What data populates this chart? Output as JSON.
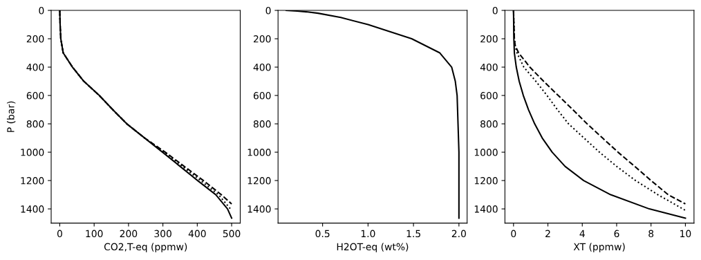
{
  "chart_data": [
    {
      "type": "line",
      "xlabel": "CO2,T-eq (ppmw)",
      "ylabel": "P (bar)",
      "xlim": [
        -25,
        525
      ],
      "xticks": [
        0,
        100,
        200,
        300,
        400,
        500
      ],
      "ylim": [
        1500,
        0
      ],
      "yticks": [
        0,
        200,
        400,
        600,
        800,
        1000,
        1200,
        1400
      ],
      "grid": false,
      "marker": "none",
      "series": [
        {
          "color": "#000000",
          "line_style": "solid",
          "x": [
            0,
            1,
            3,
            10,
            37,
            70,
            115,
            154,
            195,
            247,
            299,
            350,
            401,
            454,
            488,
            500
          ],
          "values": [
            0,
            100,
            200,
            300,
            400,
            500,
            600,
            700,
            800,
            900,
            1000,
            1100,
            1200,
            1300,
            1400,
            1465
          ]
        },
        {
          "color": "#000000",
          "line_style": "dashed",
          "x": [
            0,
            1,
            3,
            10,
            37,
            70,
            115,
            154,
            195,
            247,
            307,
            362,
            418,
            470,
            500
          ],
          "values": [
            0,
            100,
            200,
            300,
            400,
            500,
            600,
            700,
            800,
            900,
            1000,
            1100,
            1200,
            1300,
            1365
          ]
        },
        {
          "color": "#000000",
          "line_style": "dotted",
          "x": [
            0,
            1,
            3,
            10,
            37,
            70,
            115,
            154,
            195,
            247,
            304,
            357,
            410,
            462,
            500
          ],
          "values": [
            0,
            100,
            200,
            300,
            400,
            500,
            600,
            700,
            800,
            900,
            1000,
            1100,
            1200,
            1300,
            1410
          ]
        }
      ]
    },
    {
      "type": "line",
      "xlabel": "H2OT-eq (wt%)",
      "xlim": [
        0.01,
        2.09
      ],
      "xticks": [
        {
          "value": 0.5,
          "label": "0.5"
        },
        {
          "value": 1,
          "label": "1.0"
        },
        {
          "value": 1.5,
          "label": "1.5"
        },
        {
          "value": 2,
          "label": "2.0"
        }
      ],
      "ylim": [
        1500,
        0
      ],
      "yticks": [
        0,
        200,
        400,
        600,
        800,
        1000,
        1200,
        1400
      ],
      "grid": false,
      "marker": "none",
      "series": [
        {
          "color": "#000000",
          "line_style": "solid",
          "x": [
            0.1,
            0.22,
            0.32,
            0.45,
            0.7,
            1.0,
            1.24,
            1.48,
            1.79,
            1.92,
            1.96,
            1.98,
            1.99,
            2.0,
            2.0,
            2.0
          ],
          "values": [
            0,
            5,
            10,
            20,
            50,
            100,
            150,
            200,
            300,
            400,
            500,
            600,
            800,
            1000,
            1200,
            1465
          ]
        }
      ]
    },
    {
      "type": "line",
      "xlabel": "XT (ppmw)",
      "xlim": [
        -0.5,
        10.5
      ],
      "xticks": [
        0,
        2,
        4,
        6,
        8,
        10
      ],
      "ylim": [
        1500,
        0
      ],
      "yticks": [
        0,
        200,
        400,
        600,
        800,
        1000,
        1200,
        1400
      ],
      "grid": false,
      "marker": "none",
      "series": [
        {
          "color": "#000000",
          "line_style": "solid",
          "x": [
            0,
            0.02,
            0.05,
            0.16,
            0.33,
            0.57,
            0.87,
            1.23,
            1.67,
            2.25,
            3.0,
            4.08,
            5.65,
            7.9,
            10
          ],
          "values": [
            0,
            200,
            300,
            400,
            500,
            600,
            700,
            800,
            900,
            1000,
            1100,
            1200,
            1300,
            1400,
            1465
          ]
        },
        {
          "color": "#000000",
          "line_style": "dashed",
          "x": [
            0,
            0.05,
            0.1,
            0.3,
            0.95,
            1.75,
            2.6,
            3.45,
            4.28,
            5.18,
            6.08,
            7.05,
            8.0,
            9.0,
            10
          ],
          "values": [
            0,
            200,
            250,
            300,
            400,
            500,
            600,
            700,
            800,
            900,
            1000,
            1100,
            1200,
            1300,
            1365
          ]
        },
        {
          "color": "#000000",
          "line_style": "dotted",
          "x": [
            0,
            0.05,
            0.1,
            0.2,
            0.6,
            1.3,
            1.95,
            2.55,
            3.2,
            4.1,
            5.0,
            6.0,
            7.1,
            8.4,
            10
          ],
          "values": [
            0,
            200,
            250,
            300,
            400,
            500,
            600,
            700,
            800,
            900,
            1000,
            1100,
            1200,
            1300,
            1410
          ]
        }
      ]
    }
  ]
}
